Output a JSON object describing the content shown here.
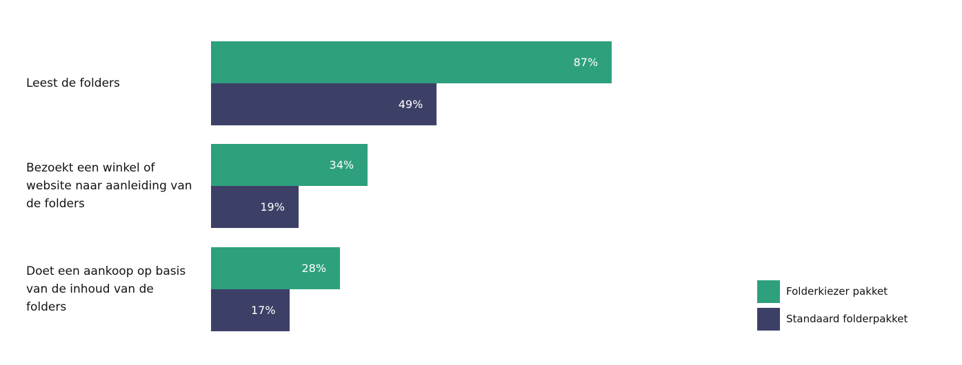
{
  "chart_data": {
    "type": "bar",
    "orientation": "horizontal",
    "categories": [
      "Leest de folders",
      "Bezoekt een winkel of website naar aanleiding van de folders",
      "Doet een aankoop op basis van de inhoud van de folders"
    ],
    "series": [
      {
        "name": "Folderkiezer pakket",
        "color": "#2ea07e",
        "values": [
          87,
          34,
          28
        ],
        "value_labels": [
          "87%",
          "34%",
          "28%"
        ]
      },
      {
        "name": "Standaard folderpakket",
        "color": "#3d4066",
        "values": [
          49,
          19,
          17
        ],
        "value_labels": [
          "49%",
          "19%",
          "17%"
        ]
      }
    ],
    "legend": "bottom-right"
  }
}
